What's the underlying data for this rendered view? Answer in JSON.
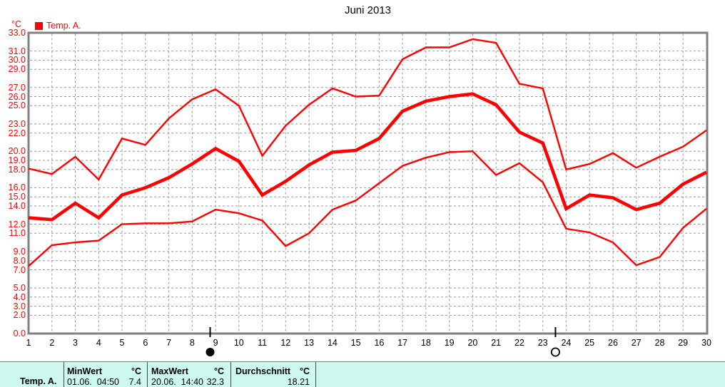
{
  "title": "Juni 2013",
  "legend": {
    "label": "Temp. A.",
    "swatch_color": "#ff0000"
  },
  "axis": {
    "unit_label": "°C",
    "y_tick_labels": [
      "33.0",
      "31.0",
      "30.0",
      "29.0",
      "27.0",
      "26.0",
      "25.0",
      "23.0",
      "22.0",
      "20.0",
      "19.0",
      "18.0",
      "16.0",
      "15.0",
      "14.0",
      "12.0",
      "11.0",
      "9.0",
      "8.0",
      "7.0",
      "5.0",
      "4.0",
      "3.0",
      "2.0",
      "0.0"
    ],
    "x_tick_labels": [
      "1",
      "2",
      "3",
      "4",
      "5",
      "6",
      "7",
      "8",
      "9",
      "10",
      "11",
      "12",
      "13",
      "14",
      "15",
      "16",
      "17",
      "18",
      "19",
      "20",
      "21",
      "22",
      "23",
      "24",
      "25",
      "26",
      "27",
      "28",
      "29",
      "30"
    ]
  },
  "chart_data": {
    "type": "line",
    "title": "Juni 2013",
    "xlabel": "",
    "ylabel": "°C",
    "ylim": [
      0,
      33
    ],
    "grid": true,
    "legend_position": "top-left",
    "x": [
      1,
      2,
      3,
      4,
      5,
      6,
      7,
      8,
      9,
      10,
      11,
      12,
      13,
      14,
      15,
      16,
      17,
      18,
      19,
      20,
      21,
      22,
      23,
      24,
      25,
      26,
      27,
      28,
      29,
      30
    ],
    "series": [
      {
        "name": "Temp. A. max",
        "values": [
          18.1,
          17.5,
          19.4,
          16.9,
          21.4,
          20.7,
          23.6,
          25.7,
          26.8,
          25.0,
          19.5,
          22.8,
          25.1,
          26.9,
          26.0,
          26.1,
          30.1,
          31.4,
          31.4,
          32.3,
          31.9,
          27.4,
          26.9,
          18.0,
          18.6,
          19.8,
          18.2,
          19.4,
          20.5,
          22.3
        ]
      },
      {
        "name": "Temp. A. mean",
        "values": [
          12.7,
          12.5,
          14.3,
          12.7,
          15.2,
          16.0,
          17.1,
          18.6,
          20.3,
          18.9,
          15.2,
          16.7,
          18.5,
          19.9,
          20.1,
          21.4,
          24.4,
          25.5,
          26.0,
          26.3,
          25.1,
          22.1,
          20.9,
          13.7,
          15.2,
          14.9,
          13.6,
          14.3,
          16.4,
          17.7
        ]
      },
      {
        "name": "Temp. A. min",
        "values": [
          7.4,
          9.7,
          10.0,
          10.2,
          12.0,
          12.1,
          12.1,
          12.3,
          13.6,
          13.2,
          12.4,
          9.6,
          11.0,
          13.6,
          14.6,
          16.5,
          18.4,
          19.3,
          19.9,
          20.0,
          17.4,
          18.7,
          16.6,
          11.5,
          11.1,
          10.0,
          7.5,
          8.4,
          11.6,
          13.7
        ]
      }
    ],
    "moon_markers": [
      {
        "symbol": "new-moon",
        "day": 8.77
      },
      {
        "symbol": "full-moon",
        "day": 23.54
      }
    ]
  },
  "footer": {
    "row_label": "Temp. A.",
    "columns": [
      {
        "header": "MinWert",
        "unit": "°C",
        "value": "01.06.  04:50",
        "number": "7.4"
      },
      {
        "header": "MaxWert",
        "unit": "°C",
        "value": "20.06.  14:40",
        "number": "32.3"
      },
      {
        "header": "Durchschnitt",
        "unit": "°C",
        "value": "",
        "number": "18.21"
      }
    ]
  },
  "colors": {
    "series": "#ff0000",
    "grid": "#999999",
    "frame": "#808080",
    "y_label": "#ff0000",
    "x_label": "#000000",
    "footer_bg": "#ccf8f0",
    "footer_divider": "#4a4a4a",
    "marker": "#000000"
  }
}
